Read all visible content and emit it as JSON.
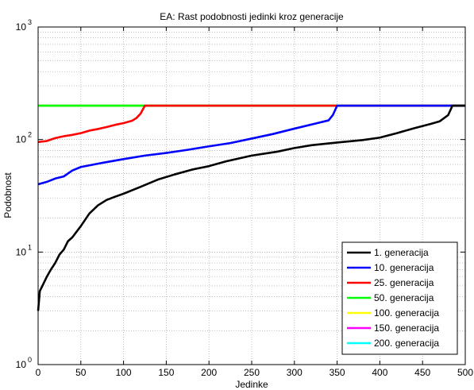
{
  "chart_data": {
    "type": "line",
    "title": "EA: Rast podobnosti jedinki kroz generacije",
    "xlabel": "Jedinke",
    "ylabel": "Podobnost",
    "xlim": [
      0,
      500
    ],
    "ylim": [
      1,
      1000
    ],
    "yscale": "log",
    "grid": true,
    "legend_position": "bottom-right",
    "x_ticks": [
      "0",
      "50",
      "100",
      "150",
      "200",
      "250",
      "300",
      "350",
      "400",
      "450",
      "500"
    ],
    "y_ticks": [
      {
        "base": "10",
        "exp": "0"
      },
      {
        "base": "10",
        "exp": "1"
      },
      {
        "base": "10",
        "exp": "2"
      },
      {
        "base": "10",
        "exp": "3"
      }
    ],
    "series": [
      {
        "name": "1. generacija",
        "color": "#000000",
        "x": [
          0,
          2,
          5,
          10,
          15,
          20,
          25,
          30,
          35,
          40,
          50,
          60,
          70,
          80,
          90,
          100,
          120,
          140,
          160,
          180,
          200,
          220,
          250,
          280,
          300,
          320,
          350,
          380,
          400,
          420,
          440,
          460,
          470,
          480,
          485,
          500
        ],
        "y": [
          3,
          4.5,
          5,
          6,
          7,
          8,
          9.5,
          10.5,
          12.5,
          13.5,
          17,
          22,
          26,
          29,
          31,
          33,
          38,
          44,
          49,
          54,
          58,
          64,
          72,
          78,
          84,
          89,
          94,
          99,
          104,
          114,
          126,
          138,
          145,
          165,
          200,
          200
        ]
      },
      {
        "name": "10. generacija",
        "color": "#0000ff",
        "x": [
          0,
          10,
          20,
          30,
          40,
          50,
          75,
          100,
          125,
          150,
          175,
          200,
          225,
          250,
          275,
          300,
          320,
          340,
          345,
          350,
          355,
          500
        ],
        "y": [
          40,
          42,
          45,
          47,
          53,
          57,
          62,
          67,
          72,
          76,
          81,
          87,
          93,
          102,
          112,
          125,
          136,
          148,
          165,
          200,
          200,
          200
        ]
      },
      {
        "name": "25. generacija",
        "color": "#ff0000",
        "x": [
          0,
          10,
          20,
          30,
          40,
          50,
          60,
          70,
          80,
          90,
          100,
          110,
          115,
          120,
          125,
          127,
          130,
          500
        ],
        "y": [
          95,
          97,
          103,
          107,
          110,
          114,
          120,
          124,
          129,
          135,
          140,
          147,
          155,
          170,
          200,
          200,
          200,
          200
        ]
      },
      {
        "name": "50. generacija",
        "color": "#00ff00",
        "x": [
          0,
          500
        ],
        "y": [
          200,
          200
        ]
      },
      {
        "name": "100. generacija",
        "color": "#ffff00",
        "x": [
          0,
          500
        ],
        "y": [
          200,
          200
        ]
      },
      {
        "name": "150. generacija",
        "color": "#ff00ff",
        "x": [
          0,
          500
        ],
        "y": [
          200,
          200
        ]
      },
      {
        "name": "200. generacija",
        "color": "#00ffff",
        "x": [
          0,
          500
        ],
        "y": [
          200,
          200
        ]
      }
    ]
  }
}
